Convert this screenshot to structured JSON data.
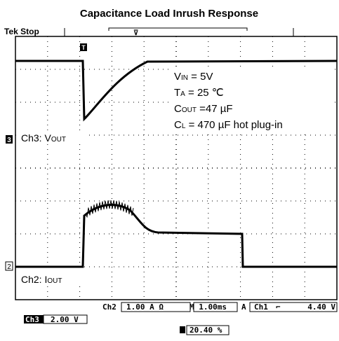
{
  "title": "Capacitance Load Inrush Response",
  "header": {
    "status": "Tek Stop",
    "trigger_marker": "T"
  },
  "traces": {
    "ch3": {
      "marker": "3",
      "name": "Ch3: V",
      "sub": "OUT"
    },
    "ch2": {
      "marker": "2",
      "name": "Ch2: I",
      "sub": "OUT"
    }
  },
  "annotations": [
    {
      "main": "V",
      "sub": "IN",
      "rest": " = 5V"
    },
    {
      "main": "T",
      "sub": "A",
      "rest": " = 25 ℃"
    },
    {
      "main": "C",
      "sub": "OUT",
      "rest": " =47 µF"
    },
    {
      "main": "C",
      "sub": "L",
      "rest": " = 470 µF hot plug-in"
    }
  ],
  "footer": {
    "ch2_name": "Ch2",
    "ch2_scale": "1.00 A Ω",
    "timebase": "M 1.00ms",
    "trigger_mode": "A",
    "trigger_source": "Ch1",
    "trigger_level": "4.40 V",
    "ch3_name": "Ch3",
    "ch3_scale": "2.00 V",
    "trigger_position": "20.40 %"
  }
}
